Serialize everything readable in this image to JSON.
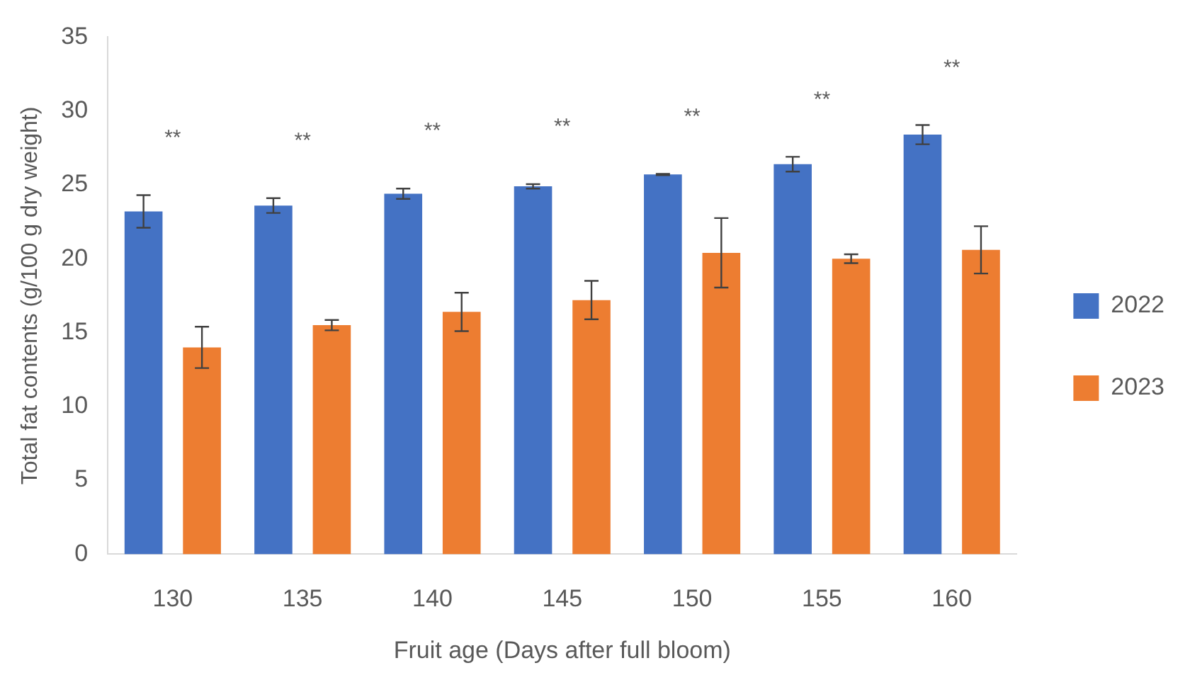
{
  "chart_data": {
    "type": "bar",
    "xlabel": "Fruit age (Days after full bloom)",
    "ylabel": "Total fat contents (g/100 g dry weight)",
    "categories": [
      "130",
      "135",
      "140",
      "145",
      "150",
      "155",
      "160"
    ],
    "series": [
      {
        "name": "2022",
        "color": "#4472c4",
        "values": [
          23.2,
          23.6,
          24.4,
          24.9,
          25.7,
          26.4,
          28.4
        ],
        "errors": [
          1.1,
          0.5,
          0.35,
          0.15,
          0.05,
          0.5,
          0.65
        ]
      },
      {
        "name": "2023",
        "color": "#ed7d31",
        "values": [
          14.0,
          15.5,
          16.4,
          17.2,
          20.4,
          20.0,
          20.6
        ],
        "errors": [
          1.4,
          0.35,
          1.3,
          1.3,
          2.35,
          0.3,
          1.6
        ]
      }
    ],
    "ylim": [
      0,
      35
    ],
    "yticks": [
      0,
      5,
      10,
      15,
      20,
      25,
      30,
      35
    ],
    "grid": false,
    "legend": "right",
    "annotations": [
      "**",
      "**",
      "**",
      "**",
      "**",
      "**",
      "**"
    ]
  }
}
